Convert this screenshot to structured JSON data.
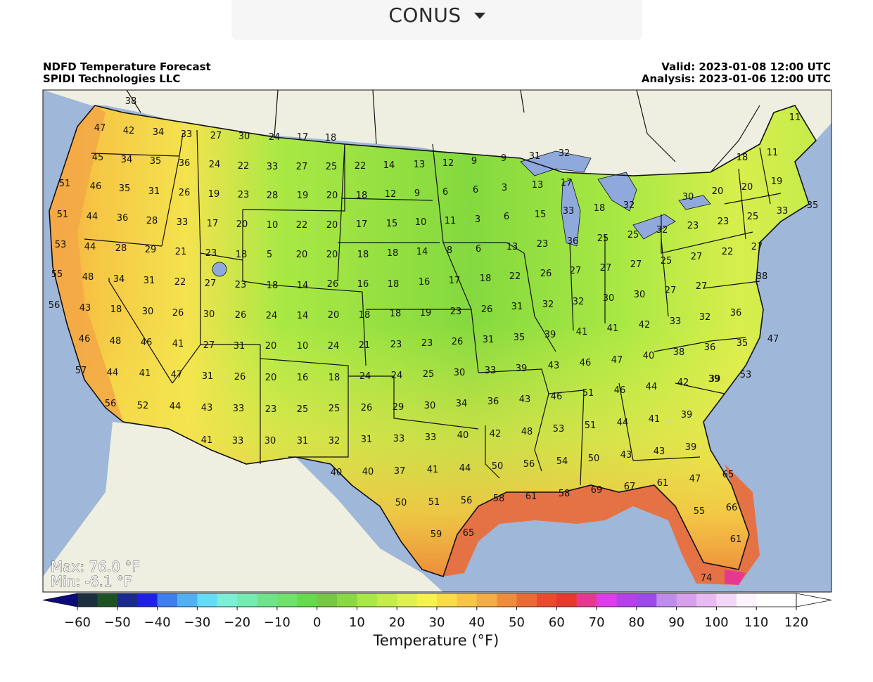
{
  "region_selector": {
    "value": "CONUS"
  },
  "header": {
    "title": "NDFD Temperature Forecast",
    "org": "SPIDI Technologies LLC",
    "valid": "Valid: 2023-01-08 12:00 UTC",
    "analysis": "Analysis: 2023-01-06 12:00 UTC"
  },
  "stats": {
    "max": "Max: 76.0 °F",
    "min": "Min: -6.1 °F"
  },
  "colors": {
    "ocean": "#9fb7d9",
    "land_foreign": "#efefe1",
    "border": "#111111",
    "lake": "#8fa9dc"
  },
  "colorbar": {
    "title": "Temperature (°F)",
    "ticks": [
      -60,
      -50,
      -40,
      -30,
      -20,
      -10,
      0,
      10,
      20,
      30,
      40,
      50,
      60,
      70,
      80,
      90,
      100,
      110,
      120
    ],
    "range": [
      -60,
      120
    ],
    "step": 5,
    "colors": [
      "#0b0b7a",
      "#1b2f3f",
      "#1d5324",
      "#1a2a8e",
      "#1f1fe8",
      "#3b7ff0",
      "#4fb0f4",
      "#64dcf5",
      "#7cf0d6",
      "#72ecb0",
      "#6ee48a",
      "#6ee26a",
      "#62dc4a",
      "#78c740",
      "#88da40",
      "#a8e844",
      "#c4ec4a",
      "#dff050",
      "#f5f24e",
      "#f9dc46",
      "#f7c444",
      "#f4ac44",
      "#ef8c3c",
      "#ec6a34",
      "#ea4a2e",
      "#e8382e",
      "#e63892",
      "#de3cea",
      "#b640ea",
      "#9c48ec",
      "#c08cec",
      "#d6a0ec",
      "#e8bcf2",
      "#f2d8f6",
      "#fbf4fd",
      "#ffffff"
    ]
  },
  "chart_data": {
    "type": "heatmap",
    "title": "NDFD Temperature Forecast",
    "units": "°F",
    "max": 76.0,
    "min": -6.1,
    "station_values": [
      {
        "v": "38"
      },
      {
        "v": "47"
      },
      {
        "v": "42"
      },
      {
        "v": "34"
      },
      {
        "v": "33"
      },
      {
        "v": "27"
      },
      {
        "v": "30"
      },
      {
        "v": "24"
      },
      {
        "v": "17"
      },
      {
        "v": "18"
      },
      {
        "v": "45"
      },
      {
        "v": "34"
      },
      {
        "v": "35"
      },
      {
        "v": "36"
      },
      {
        "v": "24"
      },
      {
        "v": "22"
      },
      {
        "v": "33"
      },
      {
        "v": "27"
      },
      {
        "v": "25"
      },
      {
        "v": "22"
      },
      {
        "v": "14"
      },
      {
        "v": "13"
      },
      {
        "v": "12"
      },
      {
        "v": "9"
      },
      {
        "v": "9"
      },
      {
        "v": "31"
      },
      {
        "v": "32"
      },
      {
        "v": "11"
      },
      {
        "v": "51"
      },
      {
        "v": "46"
      },
      {
        "v": "35"
      },
      {
        "v": "31"
      },
      {
        "v": "26"
      },
      {
        "v": "19"
      },
      {
        "v": "23"
      },
      {
        "v": "28"
      },
      {
        "v": "19"
      },
      {
        "v": "20"
      },
      {
        "v": "18"
      },
      {
        "v": "12"
      },
      {
        "v": "9"
      },
      {
        "v": "6"
      },
      {
        "v": "6"
      },
      {
        "v": "3"
      },
      {
        "v": "13"
      },
      {
        "v": "17"
      },
      {
        "v": "18"
      },
      {
        "v": "11"
      },
      {
        "v": "19"
      },
      {
        "v": "20"
      },
      {
        "v": "20"
      },
      {
        "v": "30"
      },
      {
        "v": "51"
      },
      {
        "v": "44"
      },
      {
        "v": "36"
      },
      {
        "v": "28"
      },
      {
        "v": "33"
      },
      {
        "v": "17"
      },
      {
        "v": "20"
      },
      {
        "v": "10"
      },
      {
        "v": "22"
      },
      {
        "v": "20"
      },
      {
        "v": "17"
      },
      {
        "v": "15"
      },
      {
        "v": "10"
      },
      {
        "v": "11"
      },
      {
        "v": "3"
      },
      {
        "v": "6"
      },
      {
        "v": "15"
      },
      {
        "v": "33"
      },
      {
        "v": "18"
      },
      {
        "v": "32"
      },
      {
        "v": "35"
      },
      {
        "v": "33"
      },
      {
        "v": "25"
      },
      {
        "v": "23"
      },
      {
        "v": "23"
      },
      {
        "v": "53"
      },
      {
        "v": "44"
      },
      {
        "v": "28"
      },
      {
        "v": "29"
      },
      {
        "v": "21"
      },
      {
        "v": "23"
      },
      {
        "v": "18"
      },
      {
        "v": "5"
      },
      {
        "v": "20"
      },
      {
        "v": "20"
      },
      {
        "v": "18"
      },
      {
        "v": "18"
      },
      {
        "v": "14"
      },
      {
        "v": "8"
      },
      {
        "v": "6"
      },
      {
        "v": "13"
      },
      {
        "v": "23"
      },
      {
        "v": "36"
      },
      {
        "v": "25"
      },
      {
        "v": "25"
      },
      {
        "v": "32"
      },
      {
        "v": "27"
      },
      {
        "v": "22"
      },
      {
        "v": "27"
      },
      {
        "v": "55"
      },
      {
        "v": "48"
      },
      {
        "v": "34"
      },
      {
        "v": "31"
      },
      {
        "v": "22"
      },
      {
        "v": "27"
      },
      {
        "v": "23"
      },
      {
        "v": "18"
      },
      {
        "v": "14"
      },
      {
        "v": "26"
      },
      {
        "v": "16"
      },
      {
        "v": "18"
      },
      {
        "v": "16"
      },
      {
        "v": "17"
      },
      {
        "v": "18"
      },
      {
        "v": "22"
      },
      {
        "v": "26"
      },
      {
        "v": "27"
      },
      {
        "v": "27"
      },
      {
        "v": "27"
      },
      {
        "v": "25"
      },
      {
        "v": "38"
      },
      {
        "v": "56"
      },
      {
        "v": "43"
      },
      {
        "v": "18"
      },
      {
        "v": "30"
      },
      {
        "v": "26"
      },
      {
        "v": "30"
      },
      {
        "v": "26"
      },
      {
        "v": "24"
      },
      {
        "v": "14"
      },
      {
        "v": "20"
      },
      {
        "v": "18"
      },
      {
        "v": "18"
      },
      {
        "v": "19"
      },
      {
        "v": "23"
      },
      {
        "v": "26"
      },
      {
        "v": "31"
      },
      {
        "v": "32"
      },
      {
        "v": "32"
      },
      {
        "v": "30"
      },
      {
        "v": "30"
      },
      {
        "v": "27"
      },
      {
        "v": "27"
      },
      {
        "v": "33"
      },
      {
        "v": "32"
      },
      {
        "v": "36"
      },
      {
        "v": "46"
      },
      {
        "v": "48"
      },
      {
        "v": "46"
      },
      {
        "v": "41"
      },
      {
        "v": "27"
      },
      {
        "v": "31"
      },
      {
        "v": "20"
      },
      {
        "v": "10"
      },
      {
        "v": "24"
      },
      {
        "v": "21"
      },
      {
        "v": "23"
      },
      {
        "v": "23"
      },
      {
        "v": "26"
      },
      {
        "v": "31"
      },
      {
        "v": "35"
      },
      {
        "v": "39"
      },
      {
        "v": "41"
      },
      {
        "v": "41"
      },
      {
        "v": "42"
      },
      {
        "v": "35"
      },
      {
        "v": "47"
      },
      {
        "v": "57"
      },
      {
        "v": "44"
      },
      {
        "v": "41"
      },
      {
        "v": "47"
      },
      {
        "v": "31"
      },
      {
        "v": "26"
      },
      {
        "v": "20"
      },
      {
        "v": "16"
      },
      {
        "v": "18"
      },
      {
        "v": "24"
      },
      {
        "v": "24"
      },
      {
        "v": "25"
      },
      {
        "v": "30"
      },
      {
        "v": "33"
      },
      {
        "v": "39"
      },
      {
        "v": "43"
      },
      {
        "v": "46"
      },
      {
        "v": "47"
      },
      {
        "v": "40"
      },
      {
        "v": "38"
      },
      {
        "v": "36"
      },
      {
        "v": "39"
      },
      {
        "v": "53"
      },
      {
        "v": "56"
      },
      {
        "v": "52"
      },
      {
        "v": "44"
      },
      {
        "v": "43"
      },
      {
        "v": "33"
      },
      {
        "v": "23"
      },
      {
        "v": "25"
      },
      {
        "v": "25"
      },
      {
        "v": "26"
      },
      {
        "v": "29"
      },
      {
        "v": "30"
      },
      {
        "v": "34"
      },
      {
        "v": "36"
      },
      {
        "v": "43"
      },
      {
        "v": "46"
      },
      {
        "v": "51"
      },
      {
        "v": "46"
      },
      {
        "v": "44"
      },
      {
        "v": "42"
      },
      {
        "v": "39"
      },
      {
        "v": "41"
      },
      {
        "v": "33"
      },
      {
        "v": "30"
      },
      {
        "v": "31"
      },
      {
        "v": "32"
      },
      {
        "v": "31"
      },
      {
        "v": "33"
      },
      {
        "v": "33"
      },
      {
        "v": "40"
      },
      {
        "v": "42"
      },
      {
        "v": "48"
      },
      {
        "v": "53"
      },
      {
        "v": "51"
      },
      {
        "v": "44"
      },
      {
        "v": "41"
      },
      {
        "v": "39"
      },
      {
        "v": "40"
      },
      {
        "v": "40"
      },
      {
        "v": "37"
      },
      {
        "v": "41"
      },
      {
        "v": "44"
      },
      {
        "v": "50"
      },
      {
        "v": "56"
      },
      {
        "v": "54"
      },
      {
        "v": "50"
      },
      {
        "v": "43"
      },
      {
        "v": "43"
      },
      {
        "v": "39"
      },
      {
        "v": "50"
      },
      {
        "v": "51"
      },
      {
        "v": "56"
      },
      {
        "v": "58"
      },
      {
        "v": "61"
      },
      {
        "v": "58"
      },
      {
        "v": "69"
      },
      {
        "v": "67"
      },
      {
        "v": "61"
      },
      {
        "v": "47"
      },
      {
        "v": "65"
      },
      {
        "v": "59"
      },
      {
        "v": "65"
      },
      {
        "v": "55"
      },
      {
        "v": "66"
      },
      {
        "v": "61"
      },
      {
        "v": "74"
      }
    ]
  }
}
